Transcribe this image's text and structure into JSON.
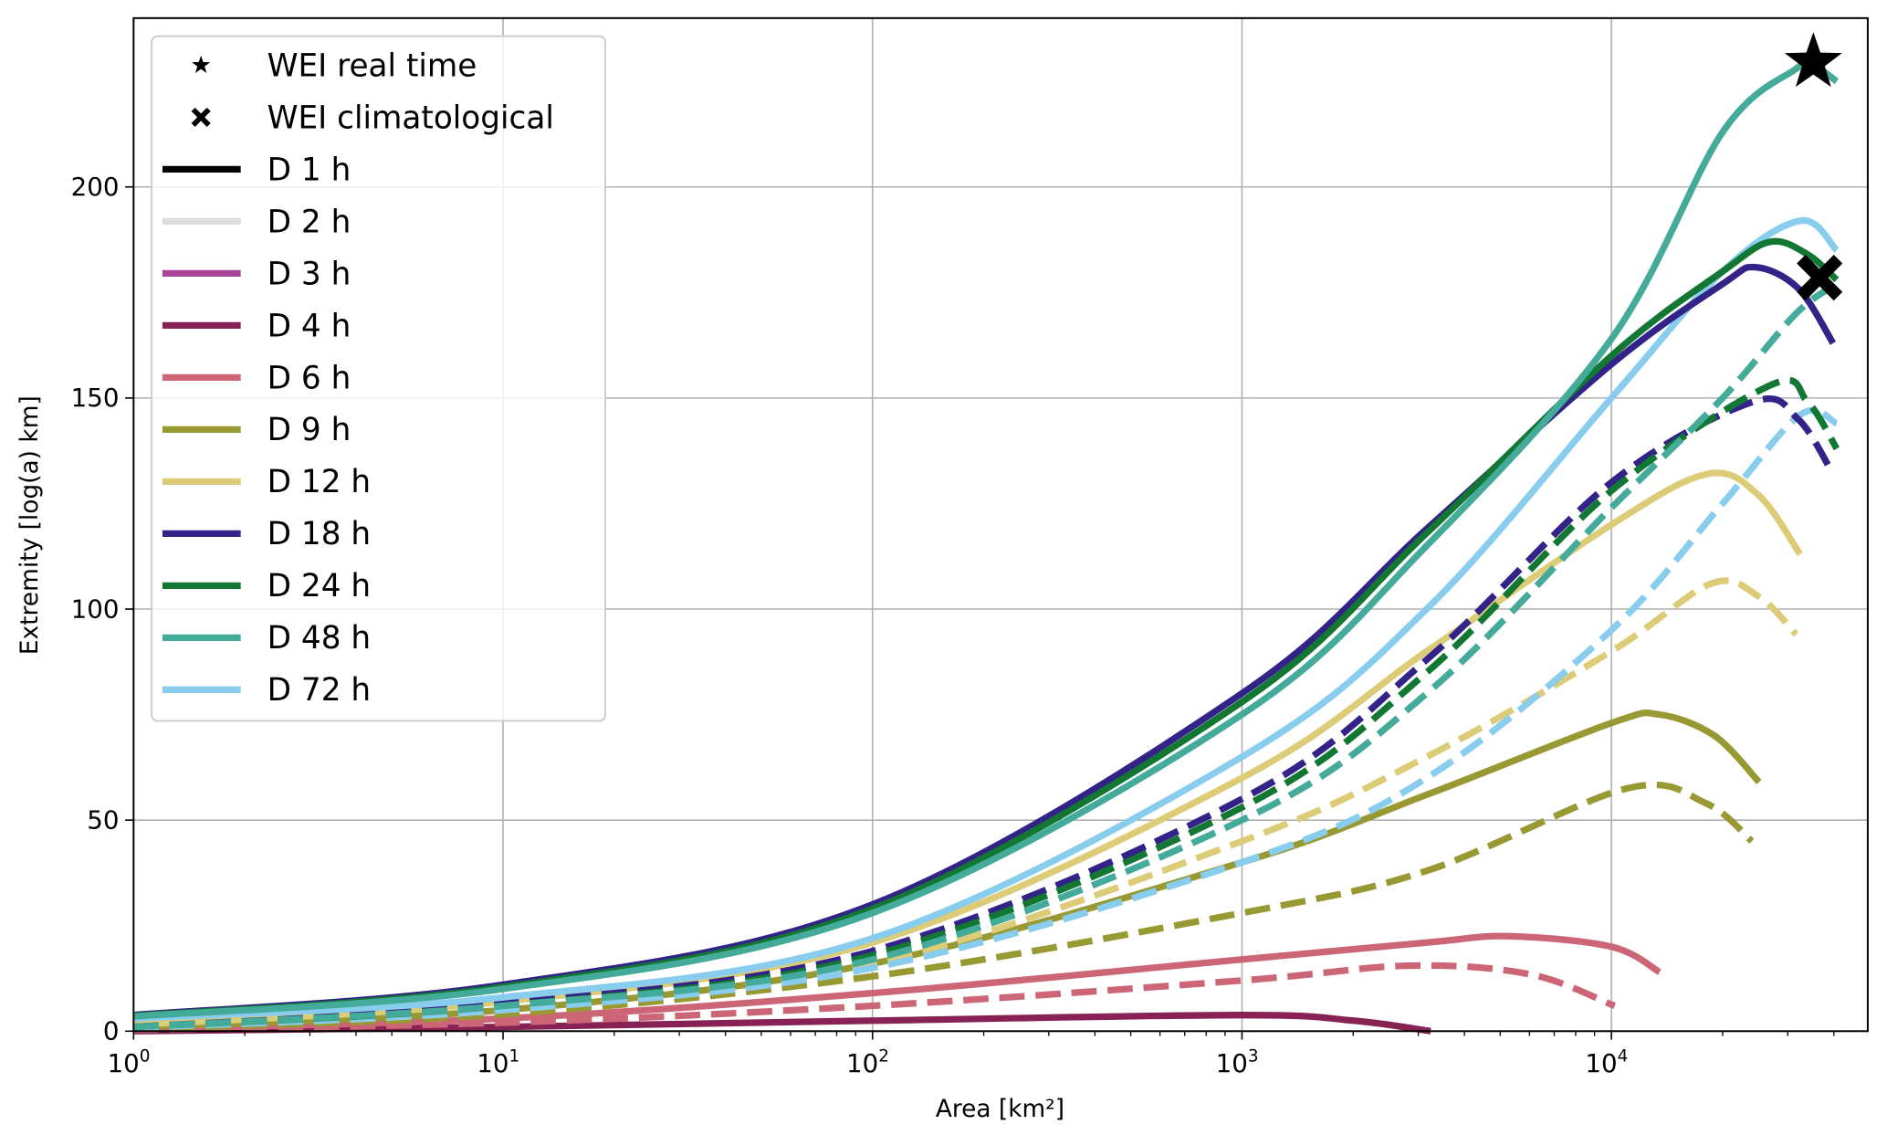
{
  "chart_data": {
    "type": "line",
    "xlabel": "Area [km²]",
    "ylabel": "Extremity [log(a) km]",
    "xscale": "log",
    "xlim": [
      1,
      49400
    ],
    "ylim": [
      0,
      240
    ],
    "xticks": [
      {
        "value": 1,
        "base": "10",
        "exp": "0"
      },
      {
        "value": 10,
        "base": "10",
        "exp": "1"
      },
      {
        "value": 100,
        "base": "10",
        "exp": "2"
      },
      {
        "value": 1000,
        "base": "10",
        "exp": "3"
      },
      {
        "value": 10000,
        "base": "10",
        "exp": "4"
      }
    ],
    "yticks": [
      {
        "value": 0,
        "label": "0"
      },
      {
        "value": 50,
        "label": "50"
      },
      {
        "value": 100,
        "label": "100"
      },
      {
        "value": 150,
        "label": "150"
      },
      {
        "value": 200,
        "label": "200"
      }
    ],
    "grid": true,
    "legend_position": "top-left",
    "legend": [
      {
        "label": "WEI real time",
        "kind": "marker",
        "marker": "star",
        "color": "#000000"
      },
      {
        "label": "WEI climatological",
        "kind": "marker",
        "marker": "x",
        "color": "#000000"
      },
      {
        "label": "D 1 h",
        "kind": "line",
        "color": "#000000"
      },
      {
        "label": "D 2 h",
        "kind": "line",
        "color": "#DDDDDD"
      },
      {
        "label": "D 3 h",
        "kind": "line",
        "color": "#AA4499"
      },
      {
        "label": "D 4 h",
        "kind": "line",
        "color": "#882255"
      },
      {
        "label": "D 6 h",
        "kind": "line",
        "color": "#CC6677"
      },
      {
        "label": "D 9 h",
        "kind": "line",
        "color": "#999933"
      },
      {
        "label": "D 12 h",
        "kind": "line",
        "color": "#DDCC77"
      },
      {
        "label": "D 18 h",
        "kind": "line",
        "color": "#332288"
      },
      {
        "label": "D 24 h",
        "kind": "line",
        "color": "#117733"
      },
      {
        "label": "D 48 h",
        "kind": "line",
        "color": "#44AA99"
      },
      {
        "label": "D 72 h",
        "kind": "line",
        "color": "#88CCEE"
      }
    ],
    "series": [
      {
        "duration": "D 4 h",
        "style": "solid",
        "color": "#882255",
        "x": [
          1,
          10,
          100,
          1000,
          2000,
          3240
        ],
        "y": [
          0,
          1,
          2.5,
          3.8,
          2.5,
          0
        ]
      },
      {
        "duration": "D 6 h",
        "style": "dashed",
        "color": "#CC6677",
        "x": [
          1,
          10,
          100,
          1000,
          2800,
          6000,
          10200
        ],
        "y": [
          0.3,
          2,
          6,
          12,
          15.5,
          13.5,
          6
        ]
      },
      {
        "duration": "D 6 h",
        "style": "solid",
        "color": "#CC6677",
        "x": [
          1,
          10,
          100,
          1000,
          3162,
          5250,
          10000,
          13500
        ],
        "y": [
          0.5,
          3,
          9,
          17,
          21,
          22.5,
          20,
          14
        ]
      },
      {
        "duration": "D 9 h",
        "style": "dashed",
        "color": "#999933",
        "x": [
          1,
          10,
          100,
          1000,
          3162,
          11000,
          18000,
          24000
        ],
        "y": [
          0.5,
          4,
          13,
          28,
          38,
          57.5,
          54,
          45
        ]
      },
      {
        "duration": "D 9 h",
        "style": "solid",
        "color": "#999933",
        "x": [
          1,
          10,
          100,
          1000,
          3162,
          10000,
          13500,
          19000,
          25100
        ],
        "y": [
          1,
          5,
          16,
          40,
          56,
          73,
          75,
          70,
          59
        ]
      },
      {
        "duration": "D 12 h",
        "style": "dashed",
        "color": "#DDCC77",
        "x": [
          1,
          10,
          100,
          1000,
          3162,
          10000,
          18600,
          25000,
          31600
        ],
        "y": [
          1,
          5,
          16,
          45,
          65,
          90,
          106,
          103,
          94
        ]
      },
      {
        "duration": "D 12 h",
        "style": "solid",
        "color": "#DDCC77",
        "x": [
          1,
          10,
          100,
          1000,
          3162,
          10000,
          18200,
          25000,
          32400
        ],
        "y": [
          1.5,
          7,
          21,
          60,
          90,
          120,
          132,
          127,
          113
        ]
      },
      {
        "duration": "D 72 h",
        "style": "dashed",
        "color": "#88CCEE",
        "x": [
          1,
          10,
          100,
          1000,
          3162,
          10000,
          20000,
          32400,
          40700
        ],
        "y": [
          0.8,
          5,
          15,
          40,
          60,
          95,
          125,
          146,
          144
        ]
      },
      {
        "duration": "D 18 h",
        "style": "dashed",
        "color": "#332288",
        "x": [
          1,
          10,
          100,
          1000,
          3162,
          10000,
          24000,
          32000,
          39800
        ],
        "y": [
          1,
          6.5,
          19,
          55,
          88,
          130,
          149,
          145,
          132
        ]
      },
      {
        "duration": "D 24 h",
        "style": "dashed",
        "color": "#117733",
        "x": [
          1,
          10,
          100,
          1000,
          3162,
          10000,
          26900,
          34000,
          40700
        ],
        "y": [
          1,
          6,
          18,
          53,
          85,
          128,
          153,
          149,
          138
        ]
      },
      {
        "duration": "D 48 h",
        "style": "dashed",
        "color": "#44AA99",
        "x": [
          1,
          10,
          100,
          1000,
          3162,
          10000,
          20000,
          31600,
          40700
        ],
        "y": [
          1,
          6,
          17,
          50,
          80,
          124,
          150,
          170,
          177
        ]
      },
      {
        "duration": "D 72 h",
        "style": "solid",
        "color": "#88CCEE",
        "x": [
          1,
          10,
          100,
          1000,
          3162,
          10000,
          20000,
          32400,
          40700
        ],
        "y": [
          3,
          8,
          22,
          65,
          100,
          150,
          180,
          192,
          185
        ]
      },
      {
        "duration": "D 18 h",
        "style": "solid",
        "color": "#332288",
        "x": [
          1,
          10,
          100,
          1000,
          3162,
          10000,
          20000,
          24500,
          32000,
          39800
        ],
        "y": [
          3.8,
          11,
          30,
          80,
          119,
          158,
          177,
          181,
          176,
          163
        ]
      },
      {
        "duration": "D 24 h",
        "style": "solid",
        "color": "#117733",
        "x": [
          1,
          10,
          100,
          1000,
          3162,
          10000,
          20000,
          26900,
          34000,
          40700
        ],
        "y": [
          3.6,
          10.5,
          29,
          78,
          118,
          160,
          180,
          187,
          184,
          178
        ]
      },
      {
        "duration": "D 48 h",
        "style": "solid",
        "color": "#44AA99",
        "x": [
          1,
          10,
          100,
          1000,
          3162,
          10000,
          20000,
          31600,
          35000,
          40700
        ],
        "y": [
          3.5,
          10,
          28,
          75,
          115,
          164,
          213,
          228,
          229,
          225
        ]
      }
    ],
    "markers": [
      {
        "label": "WEI real time",
        "marker": "star",
        "x": 35200,
        "y": 229.5
      },
      {
        "label": "WEI climatological",
        "marker": "x",
        "x": 36600,
        "y": 178.5
      }
    ]
  }
}
